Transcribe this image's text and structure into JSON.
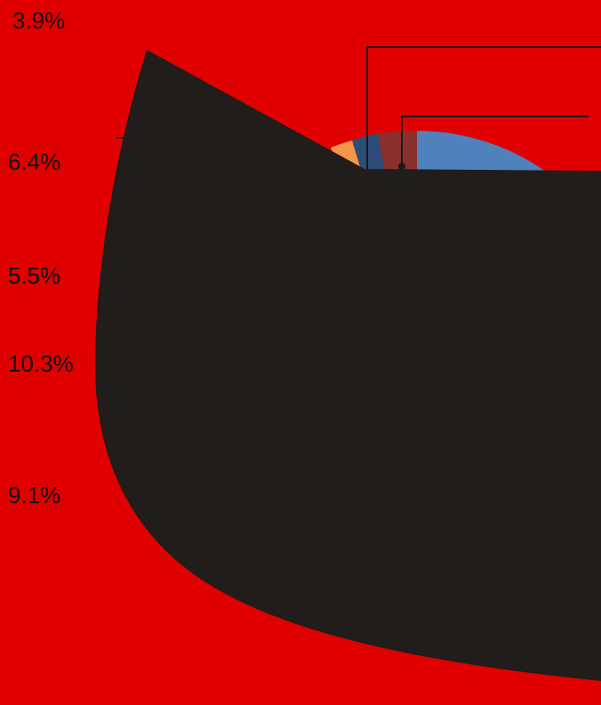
{
  "colors": {
    "background": "#e00000",
    "overlay": "#201d1b",
    "leader_line": "#1a1a1a",
    "slice_blue": "#4f81bd",
    "slice_dark_red": "#8b2e2e",
    "slice_navy": "#2c4d78",
    "slice_orange": "#f79646"
  },
  "chart_data": {
    "type": "pie",
    "title": "",
    "data_labels": [
      "3.9%",
      "6.4%",
      "5.5%",
      "10.3%",
      "9.1%"
    ],
    "visible_slices": [
      {
        "color_name": "blue",
        "value_pct": null
      },
      {
        "color_name": "dark-red",
        "value_pct": null
      },
      {
        "color_name": "navy",
        "value_pct": null
      },
      {
        "color_name": "orange",
        "value_pct": null
      }
    ],
    "legend": "none",
    "notes_visible": false
  },
  "overlay": {
    "shape": "black-cat-ear-silhouette",
    "covers_chart": true
  }
}
